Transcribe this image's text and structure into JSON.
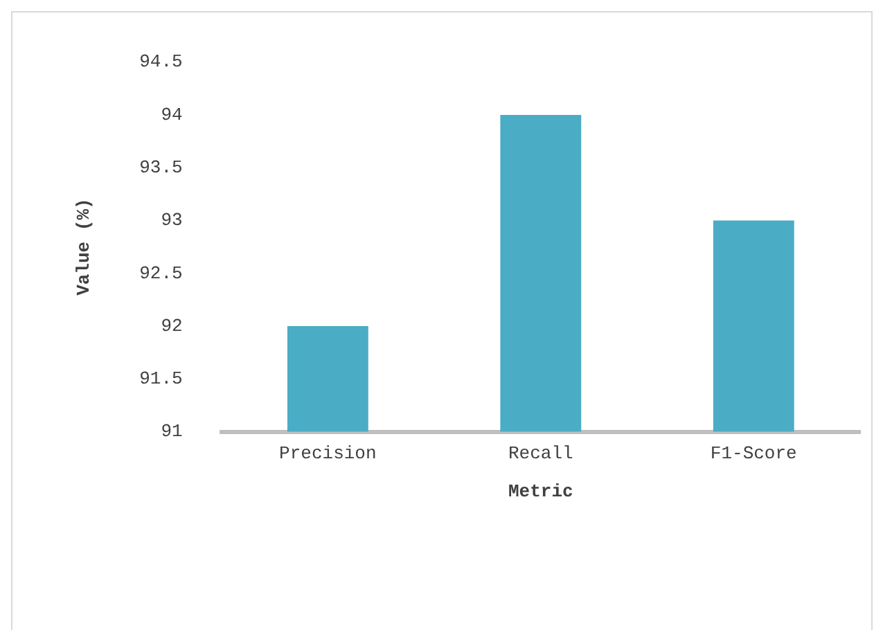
{
  "chart_data": {
    "type": "bar",
    "xlabel": "Metric",
    "ylabel": "Value (%)",
    "categories": [
      "Precision",
      "Recall",
      "F1-Score"
    ],
    "values": [
      92,
      94,
      93
    ],
    "color": "#4bacc6",
    "ylim": [
      91,
      94.5
    ],
    "yticks": [
      91,
      91.5,
      92,
      92.5,
      93,
      93.5,
      94,
      94.5
    ],
    "grid": false,
    "legend": false
  }
}
